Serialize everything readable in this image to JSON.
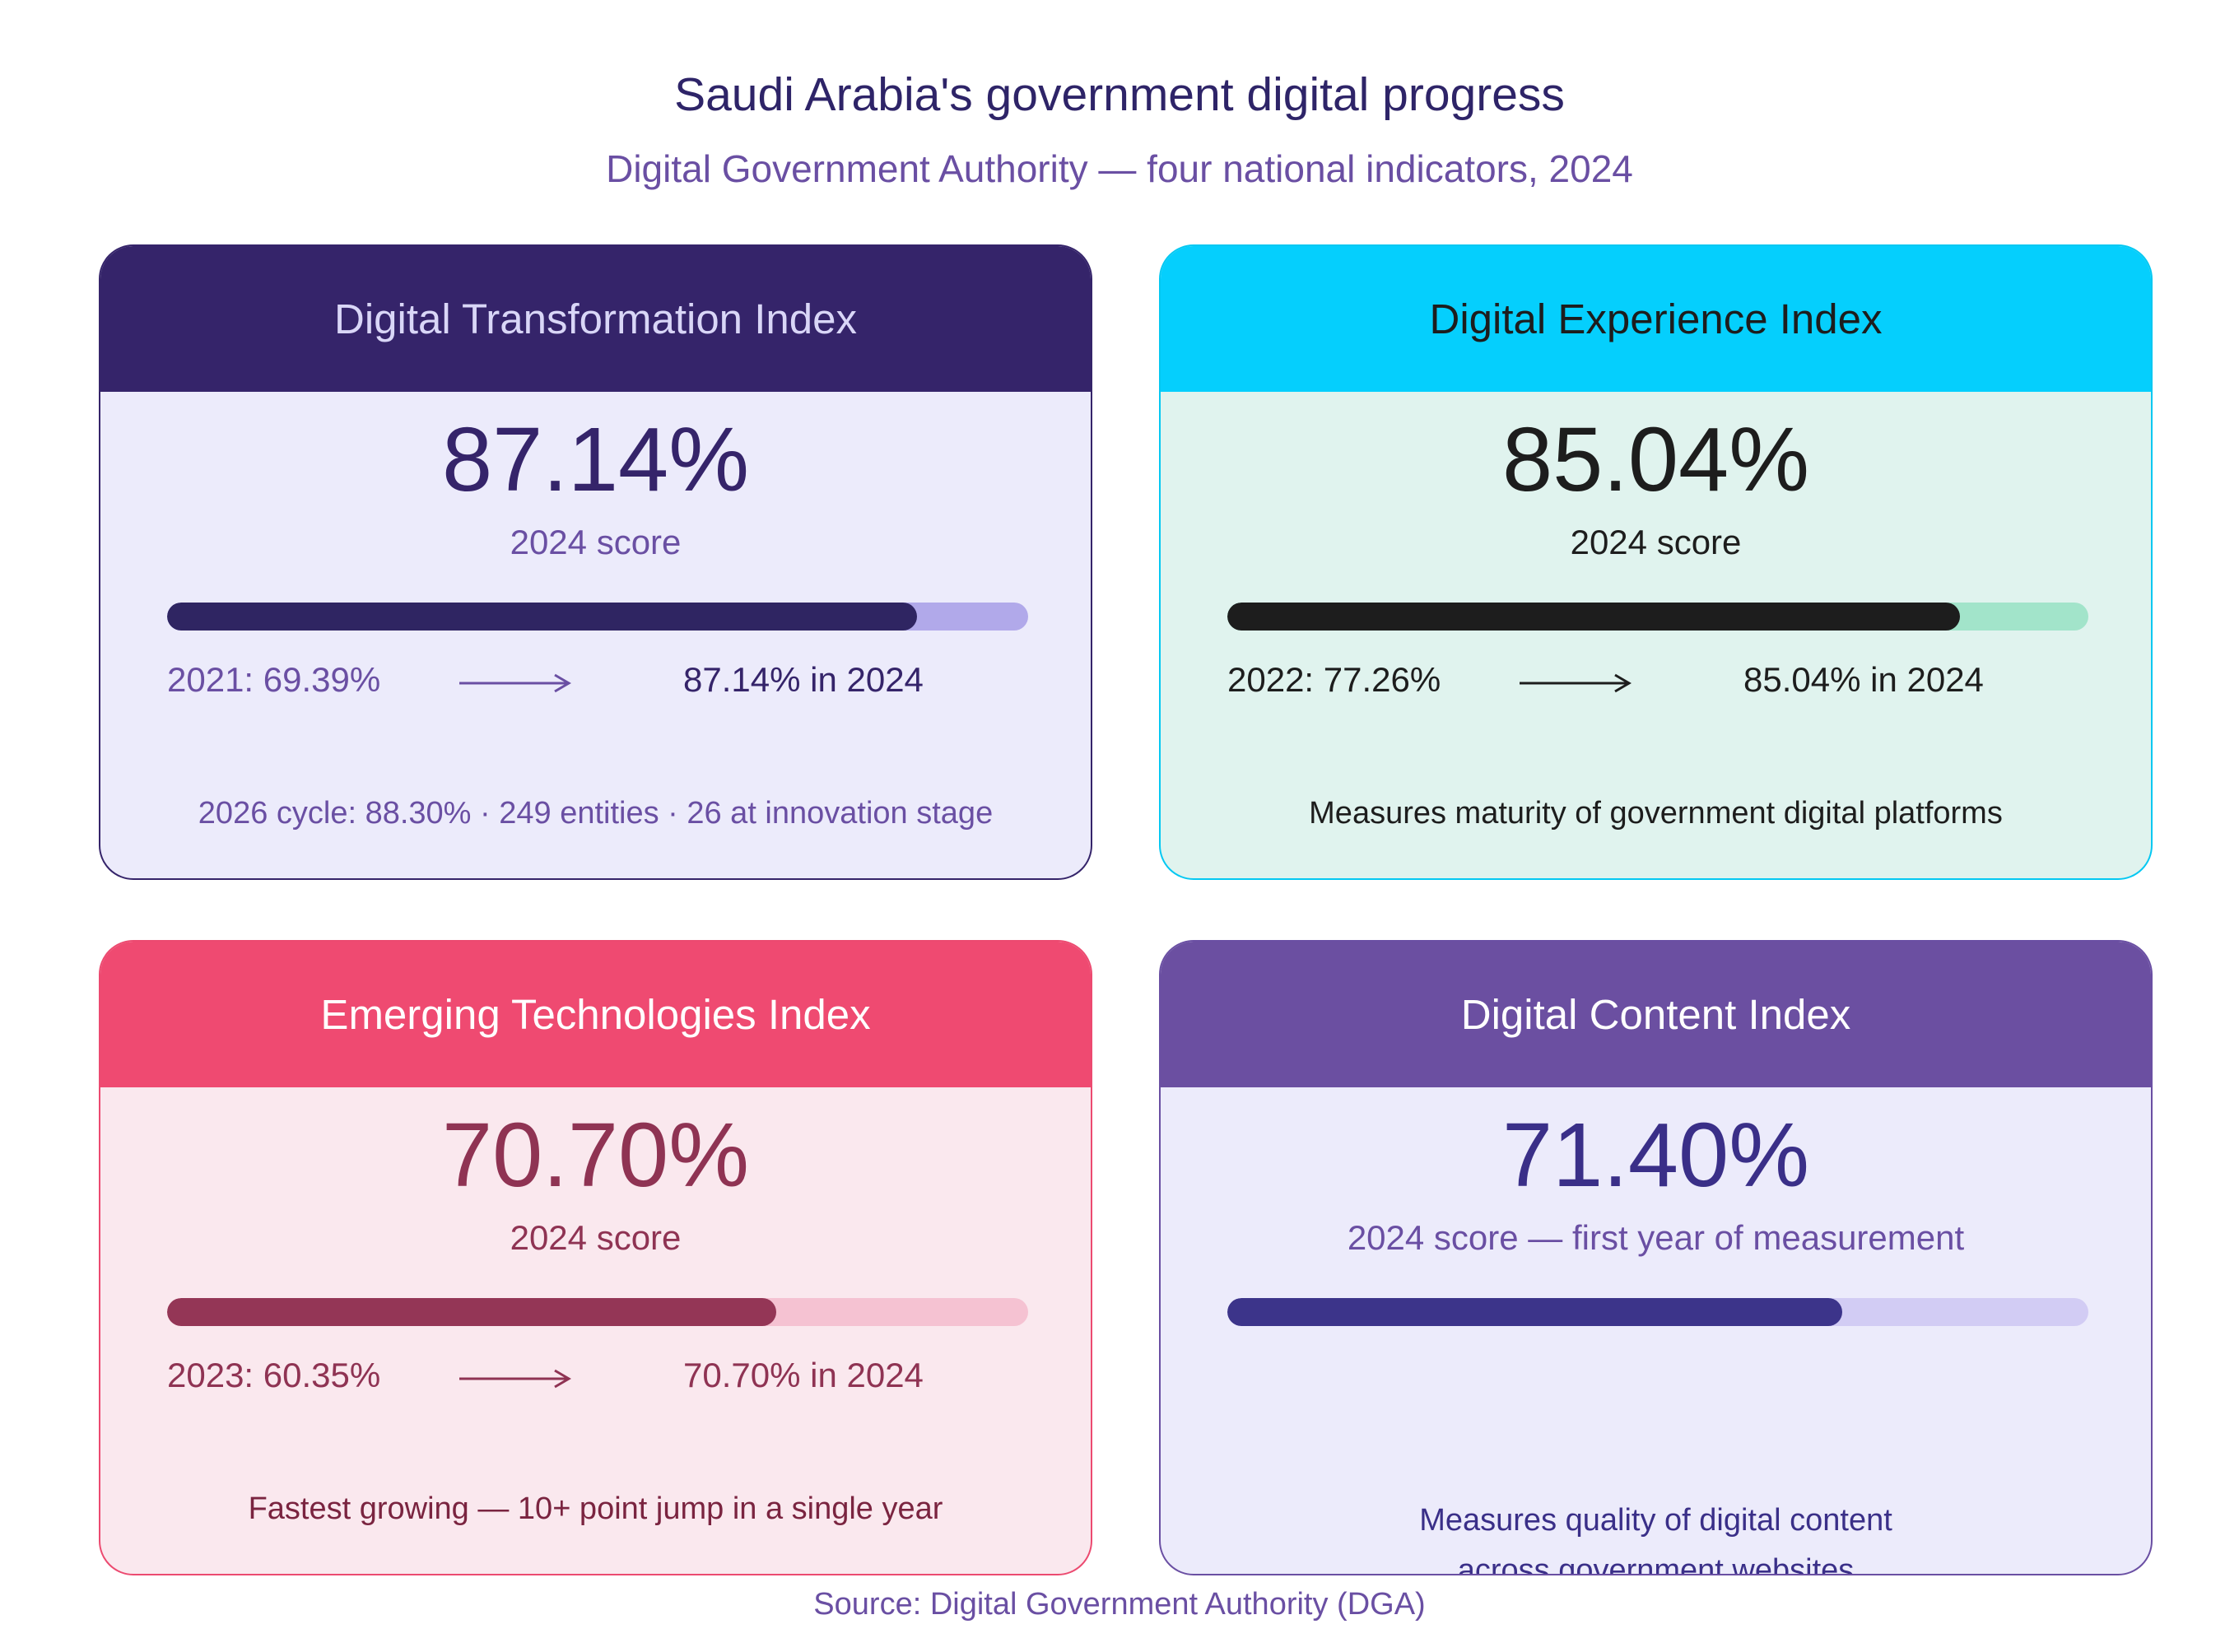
{
  "title": "Saudi Arabia's government digital progress",
  "subtitle": "Digital Government Authority — four national indicators, 2024",
  "source": "Source: Digital Government Authority (DGA)",
  "chart_data": {
    "type": "bar",
    "scale_max": 100,
    "cards": [
      {
        "id": "dti",
        "name": "Digital Transformation Index",
        "value_label": "87.14%",
        "value": 87.14,
        "caption": "2024 score",
        "baseline_label": "2021: 69.39%",
        "baseline_year": 2021,
        "baseline_value": 69.39,
        "current_label": "87.14% in 2024",
        "note": "2026 cycle: 88.30% · 249 entities · 26 at innovation stage",
        "colors": {
          "fill": "#2f2562",
          "track": "#b1a9ea"
        }
      },
      {
        "id": "dei",
        "name": "Digital Experience Index",
        "value_label": "85.04%",
        "value": 85.04,
        "caption": "2024 score",
        "baseline_label": "2022: 77.26%",
        "baseline_year": 2022,
        "baseline_value": 77.26,
        "current_label": "85.04% in 2024",
        "note": "Measures maturity of government digital platforms",
        "colors": {
          "fill": "#1d1d1d",
          "track": "#a2e4ca"
        }
      },
      {
        "id": "eti",
        "name": "Emerging Technologies Index",
        "value_label": "70.70%",
        "value": 70.7,
        "caption": "2024 score",
        "baseline_label": "2023: 60.35%",
        "baseline_year": 2023,
        "baseline_value": 60.35,
        "current_label": "70.70% in 2024",
        "note": "Fastest growing — 10+ point jump in a single year",
        "colors": {
          "fill": "#943656",
          "track": "#f5c2d2"
        }
      },
      {
        "id": "dci",
        "name": "Digital Content Index",
        "value_label": "71.40%",
        "value": 71.4,
        "caption": "2024 score — first year of measurement",
        "note_lines": [
          "Measures quality of digital content",
          "across government websites"
        ],
        "colors": {
          "fill": "#3c348a",
          "track": "#d2ccf4"
        }
      }
    ]
  }
}
